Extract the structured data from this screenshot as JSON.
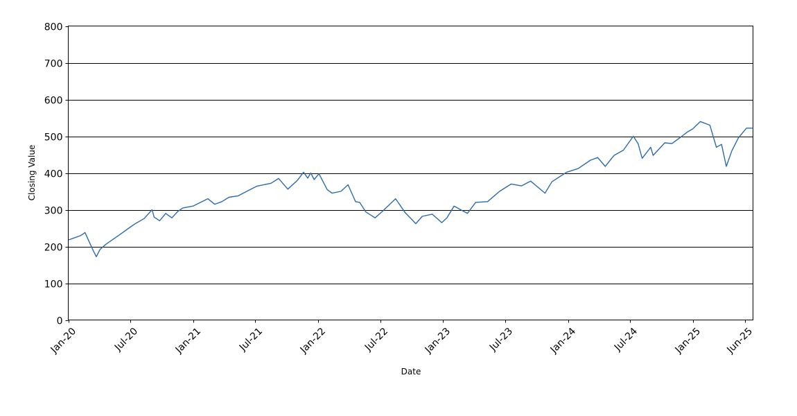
{
  "chart_data": {
    "type": "line",
    "title": "",
    "xlabel": "Date",
    "ylabel": "Closing Value",
    "ylim": [
      0,
      800
    ],
    "y_ticks": [
      0,
      100,
      200,
      300,
      400,
      500,
      600,
      700,
      800
    ],
    "xlim": [
      "2020-01-01",
      "2025-06-25"
    ],
    "x_ticks": [
      {
        "label": "Jan-20",
        "date": "2020-01-01"
      },
      {
        "label": "Jul-20",
        "date": "2020-07-01"
      },
      {
        "label": "Jan-21",
        "date": "2021-01-01"
      },
      {
        "label": "Jul-21",
        "date": "2021-07-01"
      },
      {
        "label": "Jan-22",
        "date": "2022-01-01"
      },
      {
        "label": "Jul-22",
        "date": "2022-07-01"
      },
      {
        "label": "Jan-23",
        "date": "2023-01-01"
      },
      {
        "label": "Jul-23",
        "date": "2023-07-01"
      },
      {
        "label": "Jan-24",
        "date": "2024-01-01"
      },
      {
        "label": "Jul-24",
        "date": "2024-07-01"
      },
      {
        "label": "Jan-25",
        "date": "2025-01-01"
      },
      {
        "label": "Jun-25",
        "date": "2025-06-01"
      }
    ],
    "grid": "horizontal",
    "line_color": "#2a6ab0",
    "series": [
      {
        "name": "",
        "x": [
          "2020-01-02",
          "2020-01-20",
          "2020-02-07",
          "2020-02-19",
          "2020-03-06",
          "2020-03-16",
          "2020-03-23",
          "2020-04-03",
          "2020-04-20",
          "2020-05-15",
          "2020-06-08",
          "2020-06-26",
          "2020-07-15",
          "2020-08-10",
          "2020-09-02",
          "2020-09-08",
          "2020-09-24",
          "2020-10-12",
          "2020-10-30",
          "2020-11-16",
          "2020-12-01",
          "2020-12-31",
          "2021-02-12",
          "2021-03-04",
          "2021-03-25",
          "2021-04-15",
          "2021-05-12",
          "2021-06-10",
          "2021-07-05",
          "2021-08-16",
          "2021-09-07",
          "2021-10-04",
          "2021-11-01",
          "2021-11-19",
          "2021-12-01",
          "2021-12-10",
          "2021-12-20",
          "2022-01-03",
          "2022-01-27",
          "2022-02-10",
          "2022-03-08",
          "2022-03-29",
          "2022-04-20",
          "2022-05-02",
          "2022-05-20",
          "2022-06-16",
          "2022-07-07",
          "2022-08-15",
          "2022-09-12",
          "2022-09-30",
          "2022-10-13",
          "2022-11-01",
          "2022-11-30",
          "2022-12-28",
          "2023-01-12",
          "2023-02-02",
          "2023-03-13",
          "2023-04-06",
          "2023-05-11",
          "2023-06-15",
          "2023-07-19",
          "2023-08-18",
          "2023-09-14",
          "2023-10-26",
          "2023-11-15",
          "2023-12-28",
          "2024-01-31",
          "2024-03-07",
          "2024-03-28",
          "2024-04-19",
          "2024-05-15",
          "2024-06-11",
          "2024-07-10",
          "2024-07-24",
          "2024-08-05",
          "2024-08-30",
          "2024-09-06",
          "2024-10-10",
          "2024-10-31",
          "2024-11-29",
          "2024-12-16",
          "2024-12-31",
          "2025-01-22",
          "2025-02-19",
          "2025-03-10",
          "2025-03-25",
          "2025-04-08",
          "2025-04-24",
          "2025-05-13",
          "2025-06-06",
          "2025-06-25"
        ],
        "values": [
          218,
          224,
          230,
          238,
          205,
          185,
          172,
          192,
          206,
          222,
          238,
          250,
          262,
          276,
          300,
          280,
          270,
          290,
          278,
          295,
          305,
          310,
          330,
          315,
          322,
          334,
          338,
          352,
          364,
          372,
          385,
          356,
          380,
          402,
          386,
          400,
          382,
          398,
          355,
          345,
          350,
          368,
          322,
          320,
          294,
          278,
          295,
          330,
          292,
          275,
          262,
          282,
          288,
          265,
          278,
          310,
          290,
          320,
          322,
          350,
          370,
          365,
          378,
          345,
          376,
          402,
          412,
          435,
          442,
          418,
          448,
          462,
          500,
          480,
          440,
          470,
          448,
          482,
          480,
          500,
          512,
          520,
          540,
          530,
          470,
          478,
          418,
          460,
          495,
          522,
          522
        ]
      }
    ]
  }
}
